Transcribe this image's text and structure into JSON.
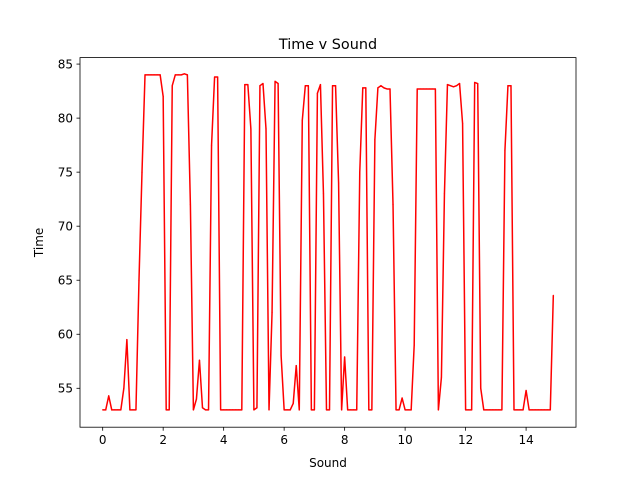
{
  "chart_data": {
    "type": "line",
    "title": "Time v Sound",
    "xlabel": "Sound",
    "ylabel": "Time",
    "xlim": [
      -0.75,
      15.65
    ],
    "ylim": [
      51.4,
      85.6
    ],
    "xticks": [
      0,
      2,
      4,
      6,
      8,
      10,
      12,
      14
    ],
    "yticks": [
      55,
      60,
      65,
      70,
      75,
      80,
      85
    ],
    "grid": false,
    "series": [
      {
        "color": "#ff0000",
        "x": [
          0.0,
          0.1,
          0.2,
          0.3,
          0.4,
          0.5,
          0.6,
          0.7,
          0.8,
          0.9,
          1.0,
          1.1,
          1.2,
          1.3,
          1.4,
          1.5,
          1.6,
          1.7,
          1.8,
          1.9,
          2.0,
          2.1,
          2.2,
          2.3,
          2.4,
          2.5,
          2.6,
          2.7,
          2.8,
          2.9,
          3.0,
          3.1,
          3.2,
          3.3,
          3.4,
          3.5,
          3.6,
          3.7,
          3.8,
          3.9,
          4.0,
          4.1,
          4.2,
          4.3,
          4.4,
          4.5,
          4.6,
          4.7,
          4.8,
          4.9,
          5.0,
          5.1,
          5.2,
          5.3,
          5.4,
          5.5,
          5.6,
          5.7,
          5.8,
          5.9,
          6.0,
          6.1,
          6.2,
          6.3,
          6.4,
          6.5,
          6.6,
          6.7,
          6.8,
          6.9,
          7.0,
          7.1,
          7.2,
          7.3,
          7.4,
          7.5,
          7.6,
          7.7,
          7.8,
          7.9,
          8.0,
          8.1,
          8.2,
          8.3,
          8.4,
          8.5,
          8.6,
          8.7,
          8.8,
          8.9,
          9.0,
          9.1,
          9.2,
          9.3,
          9.4,
          9.5,
          9.6,
          9.7,
          9.8,
          9.9,
          10.0,
          10.1,
          10.2,
          10.3,
          10.4,
          10.5,
          10.6,
          10.7,
          10.8,
          10.9,
          11.0,
          11.1,
          11.2,
          11.3,
          11.4,
          11.5,
          11.6,
          11.7,
          11.8,
          11.9,
          12.0,
          12.1,
          12.2,
          12.3,
          12.4,
          12.5,
          12.6,
          12.7,
          12.8,
          12.9,
          13.0,
          13.1,
          13.2,
          13.3,
          13.4,
          13.5,
          13.6,
          13.7,
          13.8,
          13.9,
          14.0,
          14.1,
          14.2,
          14.3,
          14.4,
          14.5,
          14.6,
          14.7,
          14.8,
          14.9
        ],
        "y": [
          53.0,
          53.0,
          54.3,
          53.0,
          53.0,
          53.0,
          53.0,
          55.0,
          59.5,
          53.0,
          53.0,
          53.0,
          65.0,
          75.0,
          84.0,
          84.0,
          84.0,
          84.0,
          84.0,
          84.0,
          82.0,
          53.0,
          53.0,
          83.0,
          84.0,
          84.0,
          84.0,
          84.1,
          84.0,
          72.0,
          53.0,
          54.0,
          57.6,
          53.2,
          53.0,
          53.0,
          77.5,
          83.8,
          83.8,
          53.0,
          53.0,
          53.0,
          53.0,
          53.0,
          53.0,
          53.0,
          53.0,
          83.1,
          83.1,
          79.0,
          53.0,
          53.2,
          83.0,
          83.2,
          79.0,
          53.0,
          62.0,
          83.4,
          83.2,
          58.0,
          53.0,
          53.0,
          53.0,
          53.6,
          57.1,
          53.0,
          79.8,
          83.0,
          83.0,
          53.0,
          53.0,
          82.3,
          83.1,
          73.0,
          53.0,
          53.0,
          83.0,
          83.0,
          74.0,
          53.0,
          57.9,
          53.0,
          53.0,
          53.0,
          53.0,
          75.0,
          82.8,
          82.8,
          53.0,
          53.0,
          78.0,
          82.8,
          83.0,
          82.8,
          82.7,
          82.7,
          72.0,
          53.0,
          53.0,
          54.1,
          53.0,
          53.0,
          53.0,
          59.0,
          82.7,
          82.7,
          82.7,
          82.7,
          82.7,
          82.7,
          82.7,
          53.0,
          56.0,
          73.0,
          83.1,
          83.0,
          82.9,
          83.0,
          83.2,
          79.5,
          53.0,
          53.0,
          53.0,
          83.3,
          83.2,
          55.0,
          53.0,
          53.0,
          53.0,
          53.0,
          53.0,
          53.0,
          53.0,
          77.0,
          83.0,
          83.0,
          53.0,
          53.0,
          53.0,
          53.0,
          54.8,
          53.0,
          53.0,
          53.0,
          53.0,
          53.0,
          53.0,
          53.0,
          53.0,
          63.6
        ]
      }
    ]
  }
}
